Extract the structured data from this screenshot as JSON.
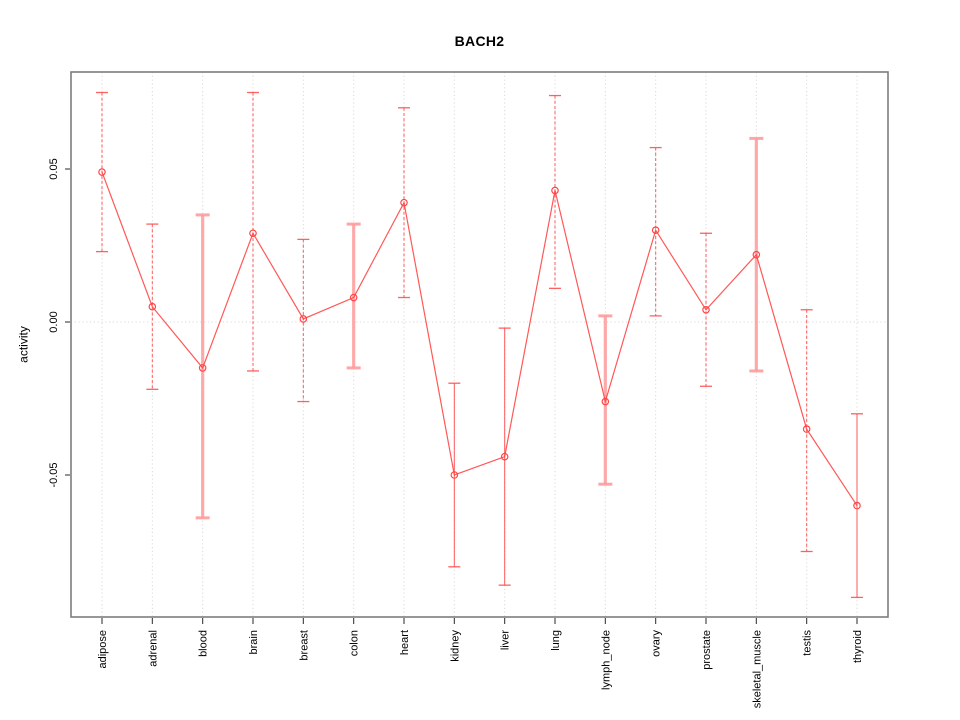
{
  "chart": {
    "title": "BACH2",
    "ylabel": "activity"
  },
  "chart_data": {
    "type": "line",
    "title": "BACH2",
    "xlabel": "",
    "ylabel": "activity",
    "categories": [
      "adipose",
      "adrenal",
      "blood",
      "brain",
      "breast",
      "colon",
      "heart",
      "kidney",
      "liver",
      "lung",
      "lymph_node",
      "ovary",
      "prostate",
      "skeletal_muscle",
      "testis",
      "thyroid"
    ],
    "series": [
      {
        "name": "activity",
        "marker": "open-circle",
        "values": [
          0.049,
          0.005,
          -0.015,
          0.029,
          0.001,
          0.008,
          0.039,
          -0.05,
          -0.044,
          0.043,
          -0.026,
          0.03,
          0.004,
          0.022,
          -0.035,
          -0.06
        ],
        "error_high": [
          0.075,
          0.032,
          0.035,
          0.075,
          0.027,
          0.032,
          0.07,
          -0.02,
          -0.002,
          0.074,
          0.002,
          0.057,
          0.029,
          0.06,
          0.004,
          -0.03
        ],
        "error_low": [
          0.023,
          -0.022,
          -0.064,
          -0.016,
          -0.026,
          -0.015,
          0.008,
          -0.08,
          -0.086,
          0.011,
          -0.053,
          0.002,
          -0.021,
          -0.016,
          -0.075,
          -0.09
        ],
        "bar_styles": [
          "dashed",
          "dashed",
          "thick",
          "dashed",
          "dashed",
          "thick",
          "dashed",
          "solid",
          "solid",
          "dashed",
          "thick",
          "dashed",
          "dashed",
          "thick",
          "dashed",
          "solid"
        ]
      }
    ],
    "yticks": [
      -0.05,
      0,
      0.05
    ],
    "ytick_labels": [
      "-0.05",
      "0.00",
      "0.05"
    ],
    "ylim": [
      -0.096,
      0.082
    ],
    "grid": "dotted vertical line at each category, dotted horizontal line at zero",
    "legend": "none",
    "colors": {
      "series_line": "#ff4646",
      "error_bar_thin": "#ff5050",
      "error_bar_thick": "#ff9c9c",
      "gridline": "#d9d9d9",
      "plot_border": "#7d7d7d",
      "tick": "#3c3c3c",
      "text": "#000000"
    }
  }
}
